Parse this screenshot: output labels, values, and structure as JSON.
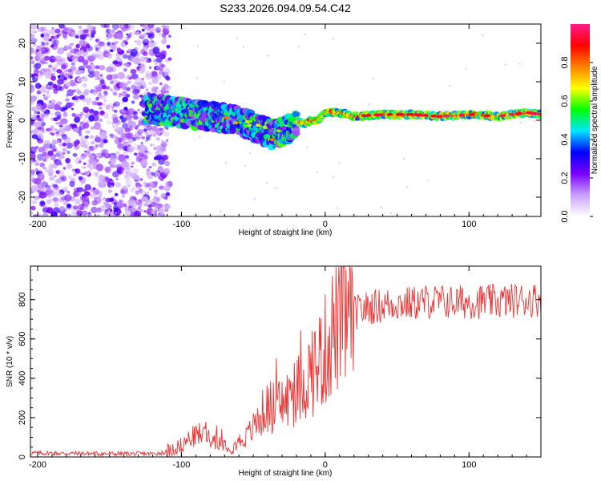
{
  "chart_data": [
    {
      "type": "heatmap",
      "title": "S233.2026.094.09.54.C42",
      "xlabel": "Height of straight line (km)",
      "ylabel": "Frequency (Hz)",
      "xlim": [
        -205,
        150
      ],
      "ylim": [
        -25,
        25
      ],
      "xticks": [
        -200,
        -100,
        0,
        100
      ],
      "yticks": [
        -20,
        -10,
        0,
        10,
        20
      ],
      "colorbar": {
        "label": "Normalized spectral amplitude",
        "range": [
          0,
          1
        ],
        "ticks": [
          0.0,
          0.2,
          0.4,
          0.6,
          0.8
        ],
        "tick_labels": [
          "0.0",
          "0.2",
          "0.4",
          "0.6",
          "0.8"
        ],
        "colors": [
          "#ffffff",
          "#c9a0ff",
          "#7a00ff",
          "#0000ff",
          "#00e5ff",
          "#00ff00",
          "#ffff00",
          "#ff8000",
          "#ff0000",
          "#ff1c8c"
        ]
      },
      "ridge": {
        "x": [
          -120,
          -100,
          -80,
          -60,
          -50,
          -40,
          -35,
          -30,
          -25,
          -20,
          -15,
          -10,
          -5,
          0,
          10,
          20,
          40,
          60,
          80,
          100,
          120,
          140,
          150
        ],
        "y": [
          3,
          2,
          1,
          0,
          -2,
          -3,
          -4,
          -3,
          -2,
          0,
          -1,
          0,
          0,
          2,
          2,
          1,
          1.5,
          1.5,
          1,
          1.5,
          1,
          2,
          1.5
        ]
      }
    },
    {
      "type": "line",
      "xlabel": "Height of straight line (km)",
      "ylabel": "SNR (10 * v/v)",
      "xlim": [
        -205,
        150
      ],
      "ylim": [
        0,
        970
      ],
      "xticks": [
        -200,
        -100,
        0,
        100
      ],
      "yticks": [
        0,
        200,
        400,
        600,
        800
      ],
      "color": "#ee3333",
      "series": [
        {
          "name": "SNR",
          "x": [
            -205,
            -180,
            -160,
            -140,
            -120,
            -110,
            -100,
            -95,
            -90,
            -85,
            -80,
            -75,
            -70,
            -65,
            -60,
            -55,
            -50,
            -45,
            -40,
            -35,
            -30,
            -25,
            -20,
            -15,
            -10,
            -5,
            0,
            5,
            10,
            20,
            30,
            40,
            50,
            60,
            70,
            80,
            90,
            100,
            110,
            120,
            130,
            140,
            150
          ],
          "y": [
            20,
            18,
            17,
            16,
            16,
            25,
            60,
            90,
            110,
            120,
            100,
            80,
            70,
            50,
            80,
            100,
            150,
            210,
            250,
            260,
            270,
            300,
            330,
            380,
            430,
            480,
            540,
            640,
            700,
            730,
            760,
            770,
            780,
            780,
            790,
            790,
            785,
            790,
            790,
            790,
            795,
            800,
            800
          ]
        }
      ]
    }
  ]
}
